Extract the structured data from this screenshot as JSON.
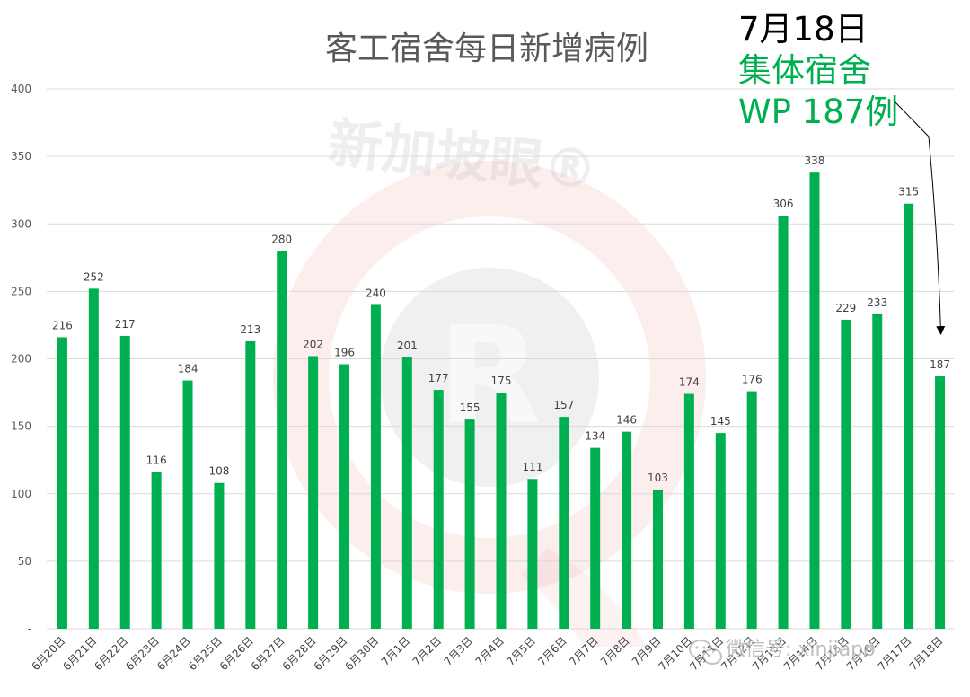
{
  "chart_data": {
    "type": "bar",
    "title": "客工宿舍每日新增病例",
    "categories": [
      "6月20日",
      "6月21日",
      "6月22日",
      "6月23日",
      "6月24日",
      "6月25日",
      "6月26日",
      "6月27日",
      "6月28日",
      "6月29日",
      "6月30日",
      "7月1日",
      "7月2日",
      "7月3日",
      "7月4日",
      "7月5日",
      "7月6日",
      "7月7日",
      "7月8日",
      "7月9日",
      "7月10日",
      "7月11日",
      "7月12日",
      "7月13日",
      "7月14日",
      "7月15日",
      "7月16日",
      "7月17日",
      "7月18日"
    ],
    "values": [
      216,
      252,
      217,
      116,
      184,
      108,
      213,
      280,
      202,
      196,
      240,
      201,
      177,
      155,
      175,
      111,
      157,
      134,
      146,
      103,
      174,
      145,
      176,
      306,
      338,
      229,
      233,
      315,
      187
    ],
    "ylim": [
      0,
      400
    ],
    "yticks": [
      0,
      50,
      100,
      150,
      200,
      250,
      300,
      350,
      400
    ],
    "ytick_labels": [
      "-",
      "50",
      "100",
      "150",
      "200",
      "250",
      "300",
      "350",
      "400"
    ],
    "xlabel": "",
    "ylabel": "",
    "grid": true,
    "legend": "none",
    "data_labels": true,
    "bar_color": "#00B050"
  },
  "annotation": {
    "date": "7月18日",
    "category": "集体宿舍",
    "count": "WP 187例",
    "date_color": "#000000",
    "text_color": "#00B050",
    "points_to": "7月18日"
  },
  "watermark": {
    "logo_text": "新加坡眼®",
    "wechat_icon": "wechat-icon",
    "wechat_text": "微信号: xinjiapo"
  }
}
